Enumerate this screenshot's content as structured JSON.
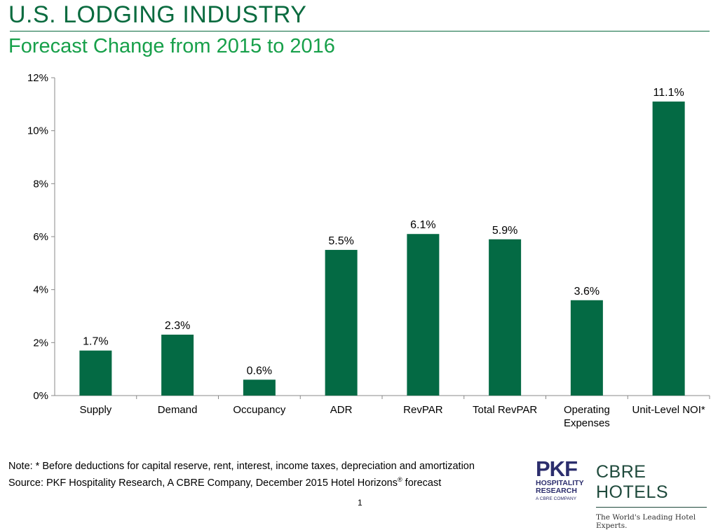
{
  "header": {
    "title": "U.S. LODGING INDUSTRY",
    "subtitle": "Forecast Change from 2015 to 2016"
  },
  "chart_data": {
    "type": "bar",
    "categories": [
      "Supply",
      "Demand",
      "Occupancy",
      "ADR",
      "RevPAR",
      "Total RevPAR",
      "Operating Expenses",
      "Unit-Level NOI*"
    ],
    "category_lines": [
      [
        "Supply"
      ],
      [
        "Demand"
      ],
      [
        "Occupancy"
      ],
      [
        "ADR"
      ],
      [
        "RevPAR"
      ],
      [
        "Total RevPAR"
      ],
      [
        "Operating",
        "Expenses"
      ],
      [
        "Unit-Level NOI*"
      ]
    ],
    "values": [
      1.7,
      2.3,
      0.6,
      5.5,
      6.1,
      5.9,
      3.6,
      11.1
    ],
    "value_labels": [
      "1.7%",
      "2.3%",
      "0.6%",
      "5.5%",
      "6.1%",
      "5.9%",
      "3.6%",
      "11.1%"
    ],
    "y_ticks": [
      0,
      2,
      4,
      6,
      8,
      10,
      12
    ],
    "y_tick_labels": [
      "0%",
      "2%",
      "4%",
      "6%",
      "8%",
      "10%",
      "12%"
    ],
    "ylim": [
      0,
      12
    ],
    "title": "Forecast Change from 2015 to 2016",
    "xlabel": "",
    "ylabel": "",
    "grid": false,
    "bar_color": "#046a44"
  },
  "footer": {
    "note": "Note: *  Before deductions for capital reserve, rent, interest, income taxes, depreciation and amortization",
    "source_prefix": "Source: PKF Hospitality Research, A CBRE Company, December 2015 Hotel Horizons",
    "source_reg": "®",
    "source_suffix": " forecast",
    "page_number": "1"
  },
  "logos": {
    "pkf_mark": "PKF",
    "pkf_line1": "HOSPITALITY",
    "pkf_line2": "RESEARCH",
    "pkf_tagline": "A CBRE COMPANY",
    "cbre_name": "CBRE HOTELS",
    "cbre_tagline": "The World's Leading Hotel Experts."
  }
}
